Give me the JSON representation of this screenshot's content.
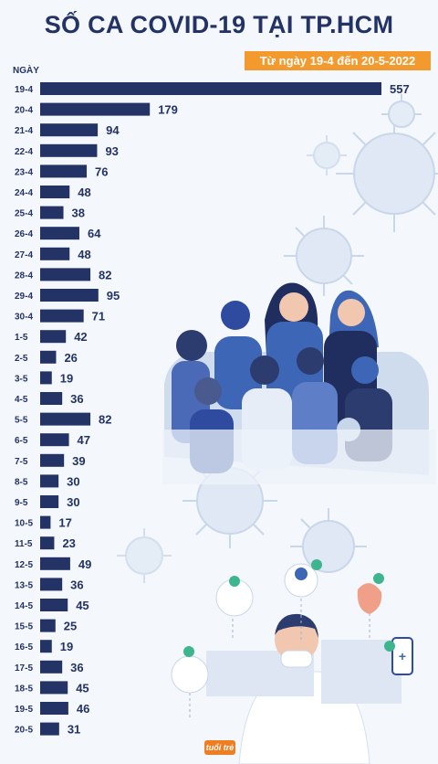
{
  "header": {
    "title": "SỐ CA COVID-19 TẠI TP.HCM",
    "subtitle": "Từ ngày 19-4 đến 20-5-2022"
  },
  "colors": {
    "bar": "#233366",
    "accent": "#f39a2e",
    "text": "#233366"
  },
  "logo_text": "tuổi trẻ",
  "chart_data": {
    "type": "bar",
    "orientation": "horizontal",
    "ylabel": "NGÀY",
    "categories": [
      "19-4",
      "20-4",
      "21-4",
      "22-4",
      "23-4",
      "24-4",
      "25-4",
      "26-4",
      "27-4",
      "28-4",
      "29-4",
      "30-4",
      "1-5",
      "2-5",
      "3-5",
      "4-5",
      "5-5",
      "6-5",
      "7-5",
      "8-5",
      "9-5",
      "10-5",
      "11-5",
      "12-5",
      "13-5",
      "14-5",
      "15-5",
      "16-5",
      "17-5",
      "18-5",
      "19-5",
      "20-5"
    ],
    "values": [
      557,
      179,
      94,
      93,
      76,
      48,
      38,
      64,
      48,
      82,
      95,
      71,
      42,
      26,
      19,
      36,
      82,
      47,
      39,
      30,
      30,
      17,
      23,
      49,
      36,
      45,
      25,
      19,
      36,
      45,
      46,
      31
    ],
    "xlim": [
      0,
      557
    ],
    "grid": false,
    "legend": "none"
  }
}
